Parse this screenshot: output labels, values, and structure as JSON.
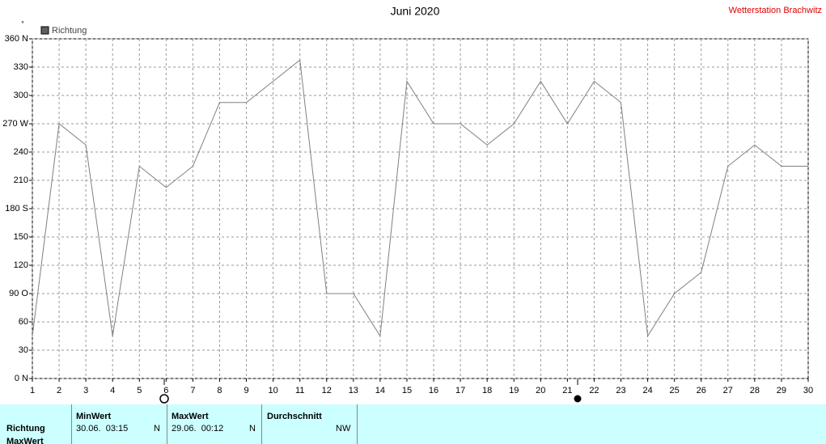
{
  "chart_data": {
    "type": "line",
    "title": "Juni 2020",
    "station": "Wetterstation Brachwitz",
    "y_unit": "°",
    "x": [
      1,
      2,
      3,
      4,
      5,
      6,
      7,
      8,
      9,
      10,
      11,
      12,
      13,
      14,
      15,
      16,
      17,
      18,
      19,
      20,
      21,
      22,
      23,
      24,
      25,
      26,
      27,
      28,
      29,
      30
    ],
    "series": [
      {
        "name": "Richtung",
        "color": "#808080",
        "values": [
          45,
          270,
          247.5,
          45,
          225,
          202.5,
          225,
          292.5,
          292.5,
          315,
          337.5,
          90,
          90,
          45,
          315,
          270,
          270,
          247.5,
          270,
          315,
          270,
          315,
          292.5,
          45,
          90,
          112.5,
          225,
          247.5,
          225,
          225
        ]
      }
    ],
    "xlim": [
      1,
      30
    ],
    "xticks": [
      1,
      2,
      3,
      4,
      5,
      6,
      7,
      8,
      9,
      10,
      11,
      12,
      13,
      14,
      15,
      16,
      17,
      18,
      19,
      20,
      21,
      22,
      23,
      24,
      25,
      26,
      27,
      28,
      29,
      30
    ],
    "ylim": [
      0,
      360
    ],
    "yticks": [
      {
        "value": 0,
        "label": "0 N"
      },
      30,
      60,
      {
        "value": 90,
        "label": "90 O"
      },
      120,
      150,
      {
        "value": 180,
        "label": "180 S"
      },
      210,
      240,
      {
        "value": 270,
        "label": "270 W"
      },
      300,
      330,
      {
        "value": 360,
        "label": "360 N"
      }
    ],
    "grid": true
  },
  "table": {
    "row_labels": [
      "Richtung",
      "MaxWert"
    ],
    "headers": [
      "MinWert",
      "MaxWert",
      "Durchschnitt"
    ],
    "min": {
      "time": "30.06.  03:15",
      "dir": "N"
    },
    "max": {
      "time": "29.06.  00:12",
      "dir": "N"
    },
    "avg": "NW"
  }
}
